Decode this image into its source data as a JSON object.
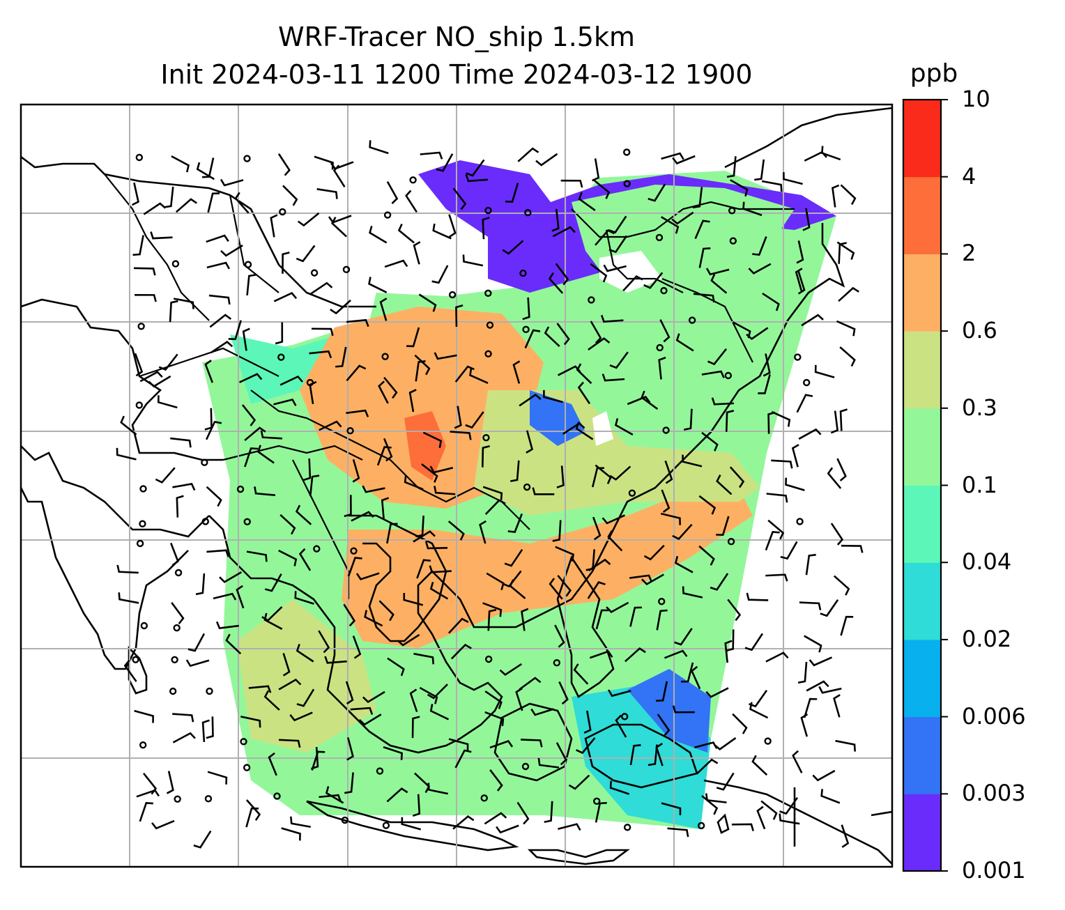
{
  "title": {
    "line1": "WRF-Tracer NO_ship 1.5km",
    "line2": "Init 2024-03-11 1200 Time 2024-03-12 1900"
  },
  "colorbar": {
    "unit": "ppb",
    "levels": [
      "0.001",
      "0.003",
      "0.006",
      "0.02",
      "0.04",
      "0.1",
      "0.3",
      "0.6",
      "2",
      "4",
      "10"
    ],
    "colors": [
      "#6a2cfb",
      "#3373f5",
      "#08b0ee",
      "#2fdcd7",
      "#5cf7b8",
      "#93f79a",
      "#cbe283",
      "#fdb063",
      "#fd6e3a",
      "#fa2b1a"
    ]
  },
  "map": {
    "gridlines": true,
    "features": [
      "coastlines",
      "borders",
      "wind-barbs"
    ]
  }
}
